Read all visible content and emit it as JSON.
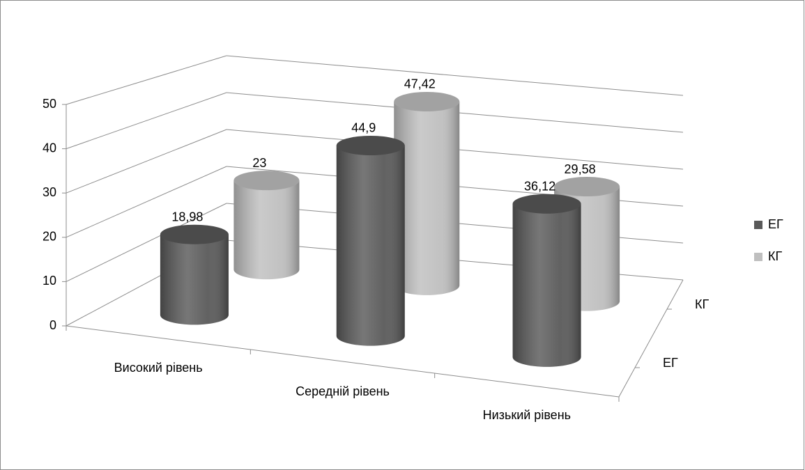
{
  "chart_data": {
    "type": "cylinder3d",
    "categories": [
      "Високий рівень",
      "Середній рівень",
      "Низький рівень"
    ],
    "series": [
      {
        "name": "ЕГ",
        "color": "#595959",
        "values": [
          18.98,
          44.9,
          36.12
        ],
        "value_labels": [
          "18,98",
          "44,9",
          "36,12"
        ]
      },
      {
        "name": "КГ",
        "color": "#bfbfbf",
        "values": [
          23,
          47.42,
          29.58
        ],
        "value_labels": [
          "23",
          "47,42",
          "29,58"
        ]
      }
    ],
    "ylim": [
      0,
      50
    ],
    "yticks": [
      0,
      10,
      20,
      30,
      40,
      50
    ],
    "grid": true,
    "legend": "right"
  }
}
